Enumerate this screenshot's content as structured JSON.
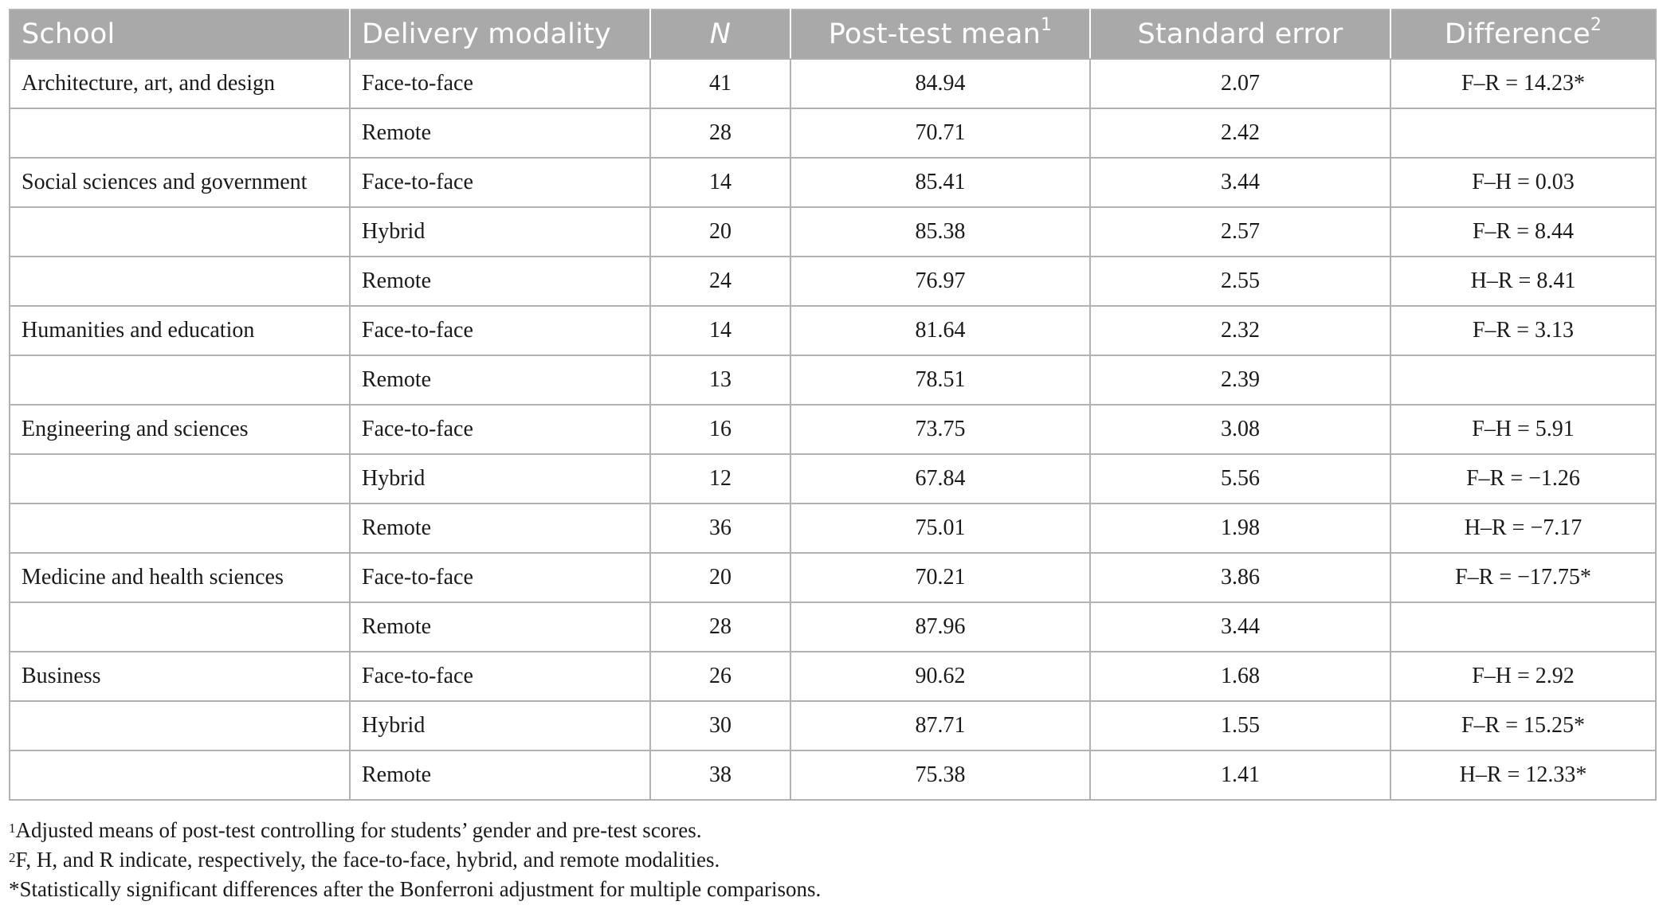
{
  "table": {
    "headers": {
      "school": "School",
      "delivery_modality": "Delivery modality",
      "n": "N",
      "post_test_mean": "Post-test mean",
      "post_test_mean_sup": "1",
      "standard_error": "Standard error",
      "difference": "Difference",
      "difference_sup": "2"
    },
    "rows": [
      {
        "school": "Architecture, art, and design",
        "modality": "Face-to-face",
        "n": "41",
        "mean": "84.94",
        "se": "2.07",
        "difference": "F–R = 14.23*"
      },
      {
        "school": "",
        "modality": "Remote",
        "n": "28",
        "mean": "70.71",
        "se": "2.42",
        "difference": ""
      },
      {
        "school": "Social sciences and government",
        "modality": "Face-to-face",
        "n": "14",
        "mean": "85.41",
        "se": "3.44",
        "difference": "F–H = 0.03"
      },
      {
        "school": "",
        "modality": "Hybrid",
        "n": "20",
        "mean": "85.38",
        "se": "2.57",
        "difference": "F–R = 8.44"
      },
      {
        "school": "",
        "modality": "Remote",
        "n": "24",
        "mean": "76.97",
        "se": "2.55",
        "difference": "H–R = 8.41"
      },
      {
        "school": "Humanities and education",
        "modality": "Face-to-face",
        "n": "14",
        "mean": "81.64",
        "se": "2.32",
        "difference": "F–R = 3.13"
      },
      {
        "school": "",
        "modality": "Remote",
        "n": "13",
        "mean": "78.51",
        "se": "2.39",
        "difference": ""
      },
      {
        "school": "Engineering and sciences",
        "modality": "Face-to-face",
        "n": "16",
        "mean": "73.75",
        "se": "3.08",
        "difference": "F–H = 5.91"
      },
      {
        "school": "",
        "modality": "Hybrid",
        "n": "12",
        "mean": "67.84",
        "se": "5.56",
        "difference": "F–R = −1.26"
      },
      {
        "school": "",
        "modality": "Remote",
        "n": "36",
        "mean": "75.01",
        "se": "1.98",
        "difference": "H–R = −7.17"
      },
      {
        "school": "Medicine and health sciences",
        "modality": "Face-to-face",
        "n": "20",
        "mean": "70.21",
        "se": "3.86",
        "difference": "F–R = −17.75*"
      },
      {
        "school": "",
        "modality": "Remote",
        "n": "28",
        "mean": "87.96",
        "se": "3.44",
        "difference": ""
      },
      {
        "school": "Business",
        "modality": "Face-to-face",
        "n": "26",
        "mean": "90.62",
        "se": "1.68",
        "difference": "F–H = 2.92"
      },
      {
        "school": "",
        "modality": "Hybrid",
        "n": "30",
        "mean": "87.71",
        "se": "1.55",
        "difference": "F–R = 15.25*"
      },
      {
        "school": "",
        "modality": "Remote",
        "n": "38",
        "mean": "75.38",
        "se": "1.41",
        "difference": "H–R = 12.33*"
      }
    ]
  },
  "footnotes": [
    {
      "marker": "1",
      "text": "Adjusted means of post-test controlling for students’ gender and pre-test scores."
    },
    {
      "marker": "2",
      "text": "F, H, and R indicate, respectively, the face-to-face, hybrid, and remote modalities."
    },
    {
      "marker": "",
      "text": "*Statistically significant differences after the Bonferroni adjustment for multiple comparisons."
    }
  ],
  "colors": {
    "header_background": "#a9a9a9",
    "header_text": "#ffffff",
    "border": "#b2b2b2",
    "body_text": "#1a1a1a"
  }
}
